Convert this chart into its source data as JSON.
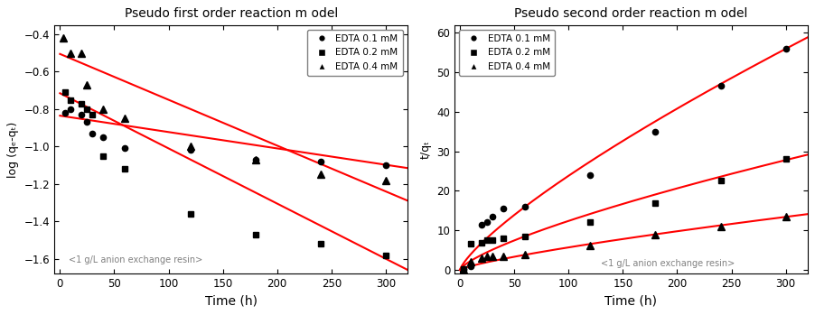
{
  "left_title": "Pseudo first order reaction m odel",
  "right_title": "Pseudo second order reaction m odel",
  "left_xlabel": "Time (h)",
  "right_xlabel": "Time (h)",
  "left_ylabel": "log (qₑ-qₜ)",
  "right_ylabel": "t/qₜ",
  "annotation": "<1 g/L anion exchange resin>",
  "legend_labels": [
    "EDTA 0.1 mM",
    "EDTA 0.2 mM",
    "EDTA 0.4 mM"
  ],
  "line_color": "red",
  "left_xlim": [
    -5,
    320
  ],
  "left_ylim": [
    -1.68,
    -0.35
  ],
  "right_xlim": [
    -5,
    320
  ],
  "right_ylim": [
    -1,
    62
  ],
  "left_yticks": [
    -1.6,
    -1.4,
    -1.2,
    -1.0,
    -0.8,
    -0.6,
    -0.4
  ],
  "right_yticks": [
    0,
    10,
    20,
    30,
    40,
    50,
    60
  ],
  "xticks": [
    0,
    50,
    100,
    150,
    200,
    250,
    300
  ],
  "pfo_01_x": [
    5,
    10,
    20,
    25,
    30,
    40,
    60,
    120,
    180,
    240,
    300
  ],
  "pfo_01_y": [
    -0.82,
    -0.8,
    -0.83,
    -0.87,
    -0.93,
    -0.95,
    -1.01,
    -1.02,
    -1.07,
    -1.08,
    -1.1
  ],
  "pfo_01_slope": -0.000875,
  "pfo_01_intercept": -0.835,
  "pfo_02_x": [
    5,
    10,
    20,
    25,
    30,
    40,
    60,
    120,
    180,
    240,
    300
  ],
  "pfo_02_y": [
    -0.71,
    -0.75,
    -0.77,
    -0.8,
    -0.83,
    -1.05,
    -1.12,
    -1.36,
    -1.47,
    -1.52,
    -1.58
  ],
  "pfo_02_slope": -0.00295,
  "pfo_02_intercept": -0.715,
  "pfo_04_x": [
    3,
    10,
    20,
    25,
    40,
    60,
    120,
    180,
    240,
    300
  ],
  "pfo_04_y": [
    -0.42,
    -0.5,
    -0.5,
    -0.67,
    -0.8,
    -0.85,
    -1.0,
    -1.07,
    -1.15,
    -1.18
  ],
  "pfo_04_slope": -0.00245,
  "pfo_04_intercept": -0.505,
  "pso_01_x": [
    3,
    10,
    20,
    25,
    30,
    40,
    60,
    120,
    180,
    240,
    300
  ],
  "pso_01_y": [
    0.15,
    1.0,
    11.5,
    12.0,
    13.5,
    15.5,
    16.0,
    24.0,
    35.0,
    46.5,
    56.0
  ],
  "pso_01_A": 3.2,
  "pso_01_B": 5e-05,
  "pso_02_x": [
    3,
    10,
    20,
    25,
    30,
    40,
    60,
    120,
    180,
    240,
    300
  ],
  "pso_02_y": [
    0.1,
    6.5,
    6.8,
    7.5,
    7.5,
    8.0,
    8.5,
    12.0,
    17.0,
    22.5,
    28.0
  ],
  "pso_02_A": 1.55,
  "pso_02_B": 3e-05,
  "pso_04_x": [
    3,
    10,
    20,
    25,
    30,
    40,
    60,
    120,
    180,
    240,
    300
  ],
  "pso_04_y": [
    0.05,
    2.0,
    3.0,
    3.3,
    3.5,
    3.5,
    3.8,
    6.2,
    8.8,
    11.0,
    13.5
  ],
  "pso_04_A": 0.73,
  "pso_04_B": 1.2e-05
}
